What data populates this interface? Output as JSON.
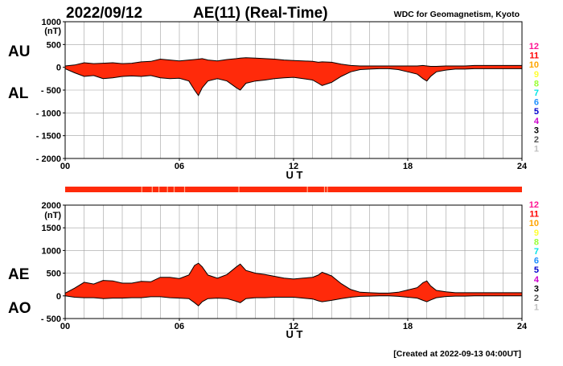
{
  "header": {
    "date": "2022/09/12",
    "title": "AE(11) (Real-Time)",
    "source": "WDC for Geomagnetism, Kyoto"
  },
  "footer": {
    "created": "[Created at 2022-09-13 04:00UT]"
  },
  "colors": {
    "fill": "#ff2a0a",
    "outline": "#000000",
    "grid": "#a0a0a0",
    "strip": "#ff2a0a",
    "strip_gap": "#ffb090"
  },
  "station_legend": {
    "labels": [
      "12",
      "11",
      "10",
      "9",
      "8",
      "7",
      "6",
      "5",
      "4",
      "3",
      "2",
      "1"
    ],
    "colors": [
      "#ff1493",
      "#ff0000",
      "#ffa500",
      "#ffff33",
      "#99ff33",
      "#00e5e5",
      "#1e90ff",
      "#0000cd",
      "#cc00cc",
      "#000000",
      "#555555",
      "#c0c0c0"
    ]
  },
  "chart_data": [
    {
      "type": "area",
      "series": [
        {
          "name": "AU"
        },
        {
          "name": "AL"
        }
      ],
      "ylabel_unit": "(nT)",
      "xlabel": "U T",
      "xlim": [
        0,
        24
      ],
      "ylim": [
        -2000,
        1000
      ],
      "yticks": [
        1000,
        500,
        0,
        -500,
        -1000,
        -1500,
        -2000
      ],
      "ytick_labels": [
        "1000",
        "500",
        "0",
        "- 500",
        "- 1000",
        "- 1500",
        "- 2000"
      ],
      "xticks": [
        0,
        6,
        12,
        18,
        24
      ],
      "xtick_labels": [
        "00",
        "06",
        "12",
        "18",
        "24"
      ],
      "grid": true,
      "x": [
        0,
        0.5,
        1,
        1.5,
        2,
        2.5,
        3,
        3.5,
        4,
        4.5,
        5,
        5.5,
        6,
        6.5,
        6.8,
        7,
        7.2,
        7.5,
        8,
        8.5,
        9,
        9.2,
        9.5,
        10,
        10.5,
        11,
        11.5,
        12,
        12.5,
        13,
        13.3,
        13.5,
        14,
        14.5,
        15,
        15.5,
        16,
        16.5,
        17,
        17.5,
        18,
        18.5,
        18.8,
        19,
        19.2,
        19.5,
        20,
        20.5,
        21,
        21.5,
        22,
        22.5,
        23,
        23.5,
        24
      ],
      "upper": [
        30,
        50,
        100,
        80,
        90,
        100,
        80,
        90,
        120,
        130,
        180,
        160,
        140,
        160,
        170,
        180,
        190,
        160,
        140,
        170,
        190,
        200,
        210,
        200,
        190,
        180,
        160,
        150,
        140,
        130,
        110,
        120,
        110,
        70,
        40,
        30,
        30,
        30,
        30,
        30,
        30,
        30,
        40,
        30,
        20,
        20,
        30,
        30,
        30,
        40,
        40,
        40,
        40,
        40,
        40
      ],
      "lower": [
        -30,
        -120,
        -200,
        -180,
        -250,
        -230,
        -200,
        -190,
        -200,
        -180,
        -230,
        -250,
        -240,
        -300,
        -500,
        -620,
        -450,
        -300,
        -250,
        -300,
        -450,
        -500,
        -350,
        -300,
        -280,
        -250,
        -230,
        -220,
        -250,
        -280,
        -350,
        -400,
        -330,
        -200,
        -100,
        -50,
        -40,
        -30,
        -30,
        -50,
        -100,
        -150,
        -250,
        -300,
        -200,
        -100,
        -60,
        -40,
        -40,
        -30,
        -30,
        -30,
        -30,
        -30,
        -30
      ]
    },
    {
      "type": "area",
      "series": [
        {
          "name": "AE"
        },
        {
          "name": "AO"
        }
      ],
      "ylabel_unit": "(nT)",
      "xlabel": "U T",
      "xlim": [
        0,
        24
      ],
      "ylim": [
        -500,
        2000
      ],
      "yticks": [
        2000,
        1500,
        1000,
        500,
        0,
        -500
      ],
      "ytick_labels": [
        "2000",
        "1500",
        "1000",
        "500",
        "0",
        "- 500"
      ],
      "xticks": [
        0,
        6,
        12,
        18,
        24
      ],
      "xtick_labels": [
        "00",
        "06",
        "12",
        "18",
        "24"
      ],
      "grid": true,
      "x": [
        0,
        0.5,
        1,
        1.5,
        2,
        2.5,
        3,
        3.5,
        4,
        4.5,
        5,
        5.5,
        6,
        6.5,
        6.8,
        7,
        7.2,
        7.5,
        8,
        8.5,
        9,
        9.2,
        9.5,
        10,
        10.5,
        11,
        11.5,
        12,
        12.5,
        13,
        13.3,
        13.5,
        14,
        14.5,
        15,
        15.5,
        16,
        16.5,
        17,
        17.5,
        18,
        18.5,
        18.8,
        19,
        19.2,
        19.5,
        20,
        20.5,
        21,
        21.5,
        22,
        22.5,
        23,
        23.5,
        24
      ],
      "upper": [
        60,
        170,
        300,
        260,
        340,
        330,
        280,
        280,
        320,
        310,
        410,
        410,
        380,
        460,
        670,
        720,
        640,
        460,
        390,
        470,
        640,
        700,
        560,
        500,
        470,
        430,
        390,
        370,
        390,
        410,
        460,
        520,
        440,
        270,
        140,
        80,
        70,
        60,
        60,
        80,
        130,
        180,
        290,
        330,
        220,
        120,
        90,
        70,
        70,
        70,
        70,
        70,
        70,
        70,
        70
      ],
      "lower": [
        0,
        -30,
        -40,
        -40,
        -60,
        -50,
        -50,
        -40,
        -40,
        -20,
        -20,
        -40,
        -50,
        -60,
        -150,
        -220,
        -130,
        -60,
        -50,
        -60,
        -120,
        -150,
        -60,
        -40,
        -40,
        -30,
        -30,
        -30,
        -50,
        -70,
        -110,
        -130,
        -100,
        -60,
        -30,
        -10,
        -5,
        0,
        0,
        -10,
        -30,
        -50,
        -100,
        -130,
        -90,
        -40,
        -15,
        -5,
        -5,
        0,
        0,
        0,
        0,
        0,
        0
      ]
    }
  ]
}
